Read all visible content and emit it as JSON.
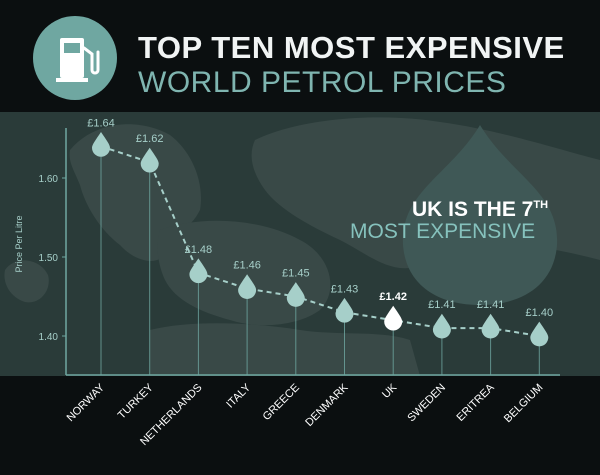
{
  "header": {
    "title": "TOP TEN MOST EXPENSIVE",
    "subtitle": "WORLD PETROL PRICES",
    "icon": "fuel-pump-icon"
  },
  "callout": {
    "line1_prefix": "UK IS THE 7",
    "line1_suffix": "TH",
    "line2": "MOST EXPENSIVE"
  },
  "colors": {
    "background": "#0b0f10",
    "map_band": "#2a3b39",
    "land": "#3a4a48",
    "accent": "#6fa7a1",
    "marker": "#a6cfc9",
    "highlight": "#ffffff",
    "title": "#f1f4f4",
    "subtitle": "#7fb5b0"
  },
  "chart_data": {
    "type": "line",
    "title": "TOP TEN MOST EXPENSIVE WORLD PETROL PRICES",
    "xlabel": "",
    "ylabel": "Price Per Litre",
    "ylim": [
      1.36,
      1.68
    ],
    "yticks": [
      1.4,
      1.5,
      1.6
    ],
    "ytick_labels": [
      "1.40",
      "1.50",
      "1.60"
    ],
    "categories": [
      "NORWAY",
      "TURKEY",
      "NETHERLANDS",
      "ITALY",
      "GREECE",
      "DENMARK",
      "UK",
      "SWEDEN",
      "ERITREA",
      "BELGIUM"
    ],
    "values": [
      1.64,
      1.62,
      1.48,
      1.46,
      1.45,
      1.43,
      1.42,
      1.41,
      1.41,
      1.4
    ],
    "data_labels": [
      "£1.64",
      "£1.62",
      "£1.48",
      "£1.46",
      "£1.45",
      "£1.43",
      "£1.42",
      "£1.41",
      "£1.41",
      "£1.40"
    ],
    "highlight_category": "UK",
    "grid": false,
    "line_style": "dashed"
  }
}
